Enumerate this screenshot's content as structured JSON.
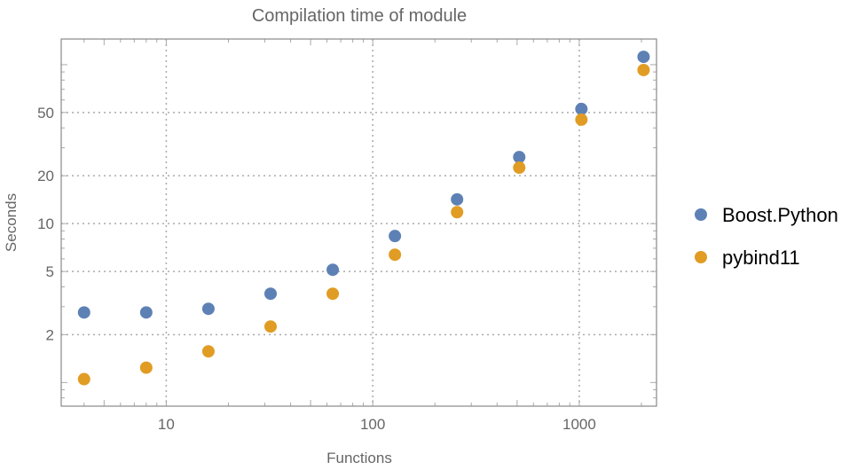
{
  "chart_data": {
    "type": "scatter",
    "title": "Compilation time of module",
    "xlabel": "Functions",
    "ylabel": "Seconds",
    "xscale": "log",
    "yscale": "log",
    "xlim": [
      3.1,
      2366
    ],
    "ylim": [
      0.71,
      145
    ],
    "xticks": [
      10,
      100,
      1000
    ],
    "xtick_labels": [
      "10",
      "100",
      "1000"
    ],
    "yticks": [
      2,
      5,
      10,
      20,
      50
    ],
    "ytick_labels": [
      "2",
      "5",
      "10",
      "20",
      "50"
    ],
    "grid": true,
    "legend_position": "right",
    "x": [
      4,
      8,
      16,
      32,
      64,
      128,
      256,
      512,
      1024,
      2048
    ],
    "series": [
      {
        "name": "Boost.Python",
        "color": "#5E81B5",
        "values": [
          2.76,
          2.76,
          2.91,
          3.62,
          5.12,
          8.35,
          14.2,
          26.2,
          52.6,
          112
        ]
      },
      {
        "name": "pybind11",
        "color": "#E19C24",
        "values": [
          1.05,
          1.24,
          1.57,
          2.25,
          3.62,
          6.37,
          11.8,
          22.5,
          45.1,
          92.5
        ]
      }
    ]
  }
}
